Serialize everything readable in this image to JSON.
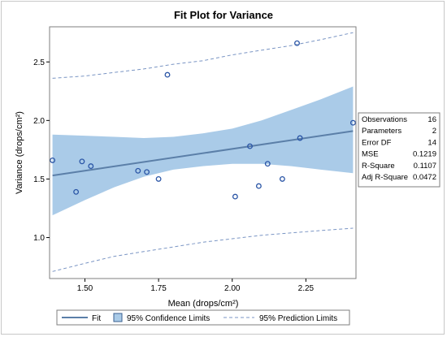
{
  "chart_data": {
    "type": "scatter",
    "title": "Fit Plot for Variance",
    "xlabel": "Mean (drops/cm²)",
    "ylabel": "Variance (drops/cm²)",
    "xlim": [
      1.38,
      2.42
    ],
    "ylim": [
      0.65,
      2.8
    ],
    "xticks": [
      1.5,
      1.75,
      2.0,
      2.25
    ],
    "xtick_labels": [
      "1.50",
      "1.75",
      "2.00",
      "2.25"
    ],
    "yticks": [
      1.0,
      1.5,
      2.0,
      2.5
    ],
    "ytick_labels": [
      "1.0",
      "1.5",
      "2.0",
      "2.5"
    ],
    "grid": false,
    "points": {
      "x": [
        1.39,
        1.47,
        1.49,
        1.52,
        1.68,
        1.71,
        1.75,
        1.78,
        2.01,
        2.06,
        2.09,
        2.12,
        2.17,
        2.22,
        2.23,
        2.41
      ],
      "y": [
        1.66,
        1.39,
        1.65,
        1.61,
        1.57,
        1.56,
        1.5,
        2.39,
        1.35,
        1.78,
        1.44,
        1.63,
        1.5,
        2.66,
        1.85,
        1.98
      ]
    },
    "fit": {
      "x": [
        1.39,
        2.41
      ],
      "y": [
        1.53,
        1.91
      ]
    },
    "confidence_limits": {
      "x": [
        1.39,
        1.5,
        1.6,
        1.7,
        1.8,
        1.9,
        2.0,
        2.1,
        2.2,
        2.3,
        2.41
      ],
      "lower": [
        1.19,
        1.32,
        1.43,
        1.52,
        1.58,
        1.61,
        1.63,
        1.63,
        1.61,
        1.58,
        1.55
      ],
      "upper": [
        1.88,
        1.87,
        1.86,
        1.85,
        1.86,
        1.89,
        1.93,
        2.0,
        2.09,
        2.18,
        2.29
      ]
    },
    "prediction_limits": {
      "x": [
        1.39,
        1.5,
        1.6,
        1.7,
        1.8,
        1.9,
        2.0,
        2.1,
        2.2,
        2.3,
        2.41
      ],
      "lower": [
        0.71,
        0.78,
        0.84,
        0.88,
        0.92,
        0.96,
        0.99,
        1.02,
        1.04,
        1.06,
        1.08
      ],
      "upper": [
        2.36,
        2.38,
        2.41,
        2.44,
        2.48,
        2.51,
        2.56,
        2.6,
        2.64,
        2.69,
        2.75
      ]
    },
    "fit_statistics": [
      {
        "label": "Observations",
        "value": "16"
      },
      {
        "label": "Parameters",
        "value": "2"
      },
      {
        "label": "Error DF",
        "value": "14"
      },
      {
        "label": "MSE",
        "value": "0.1219"
      },
      {
        "label": "R-Square",
        "value": "0.1107"
      },
      {
        "label": "Adj R-Square",
        "value": "0.0472"
      }
    ],
    "legend": {
      "placement": "bottom",
      "entries": [
        "Fit",
        "95% Confidence Limits",
        "95% Prediction Limits"
      ]
    },
    "colors": {
      "fit_line": "#5b7fa8",
      "confidence_band": "#aacbe8",
      "prediction_line": "#7a95c4",
      "marker": "#2a55a6"
    }
  }
}
